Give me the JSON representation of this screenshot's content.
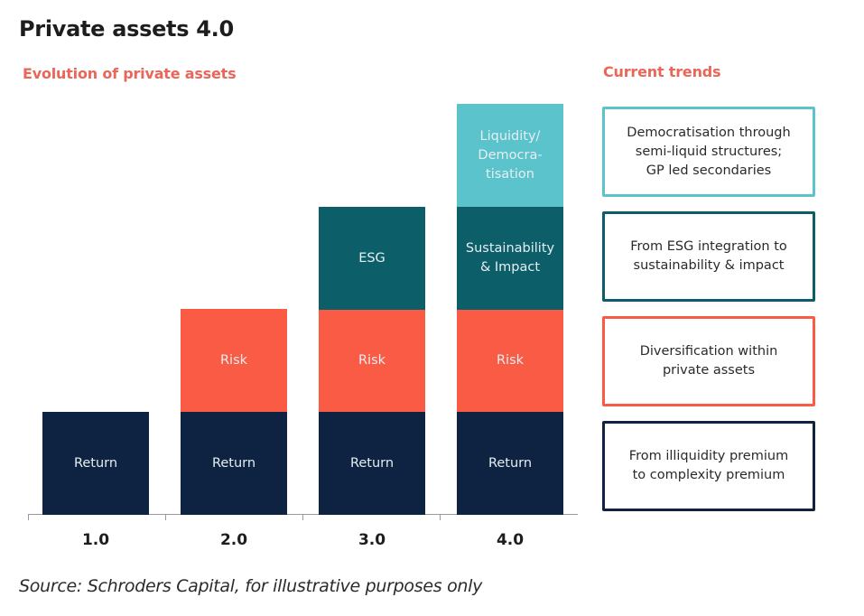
{
  "title": "Private assets 4.0",
  "left_heading": "Evolution of private assets",
  "right_heading": "Current trends",
  "colors": {
    "heading_accent": "#e8675a",
    "return": "#0e2341",
    "risk": "#fa5b45",
    "esg": "#0c5e69",
    "liquidity": "#5bc3cb",
    "segment_text": "#e6eef2"
  },
  "chart_data": {
    "type": "bar",
    "stacked": true,
    "title": "Evolution of private assets",
    "categories": [
      "1.0",
      "2.0",
      "3.0",
      "4.0"
    ],
    "series": [
      {
        "name": "Return",
        "key": "return",
        "values": [
          1,
          1,
          1,
          1
        ],
        "labels": [
          "Return",
          "Return",
          "Return",
          "Return"
        ]
      },
      {
        "name": "Risk",
        "key": "risk",
        "values": [
          0,
          1,
          1,
          1
        ],
        "labels": [
          "",
          "Risk",
          "Risk",
          "Risk"
        ]
      },
      {
        "name": "ESG / Sustainability & Impact",
        "key": "esg",
        "values": [
          0,
          0,
          1,
          1
        ],
        "labels": [
          "",
          "",
          "ESG",
          "Sustainability & Impact"
        ]
      },
      {
        "name": "Liquidity / Democratisation",
        "key": "liquidity",
        "values": [
          0,
          0,
          0,
          1
        ],
        "labels": [
          "",
          "",
          "",
          "Liquidity/ Democra- tisation"
        ]
      }
    ],
    "ylim": [
      0,
      4
    ],
    "xlabel": "",
    "ylabel": "",
    "grid": false
  },
  "trends": [
    {
      "text": "Democratisation through\nsemi-liquid structures;\nGP led secondaries",
      "color_key": "liquidity"
    },
    {
      "text": "From ESG integration to\nsustainability & impact",
      "color_key": "esg"
    },
    {
      "text": "Diversification within\nprivate assets",
      "color_key": "risk"
    },
    {
      "text": "From illiquidity  premium\nto complexity premium",
      "color_key": "return"
    }
  ],
  "source": "Source: Schroders Capital, for illustrative purposes only"
}
